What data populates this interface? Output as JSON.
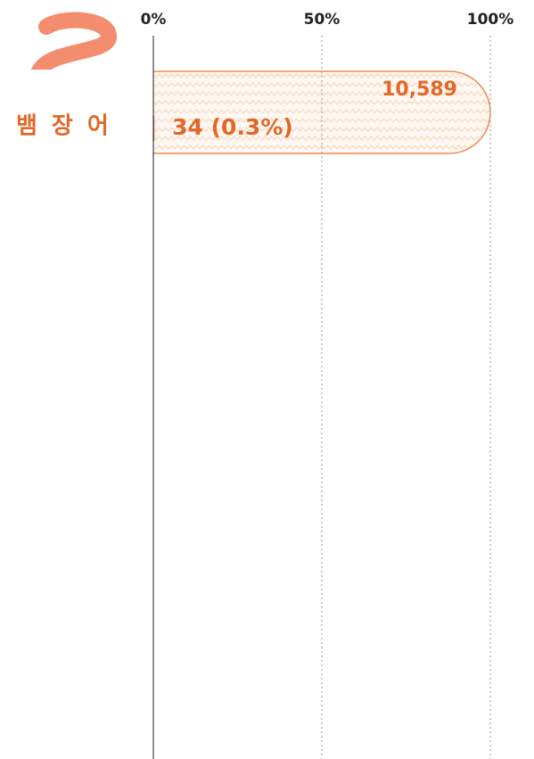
{
  "chart_data": {
    "type": "bar",
    "orientation": "horizontal",
    "categories": [
      "뱀장어"
    ],
    "values": [
      0.3
    ],
    "value_labels": [
      "34 (0.3%)"
    ],
    "color": "#d9621f",
    "totals": [
      10589
    ],
    "total_labels": [
      "10,589"
    ],
    "total_color": "#fdf3ea",
    "xlim": [
      0,
      100
    ],
    "xticks": [
      {
        "value": 0,
        "label": "0%"
      },
      {
        "value": 50,
        "label": "50%"
      },
      {
        "value": 100,
        "label": "100%"
      }
    ],
    "grid": true
  }
}
